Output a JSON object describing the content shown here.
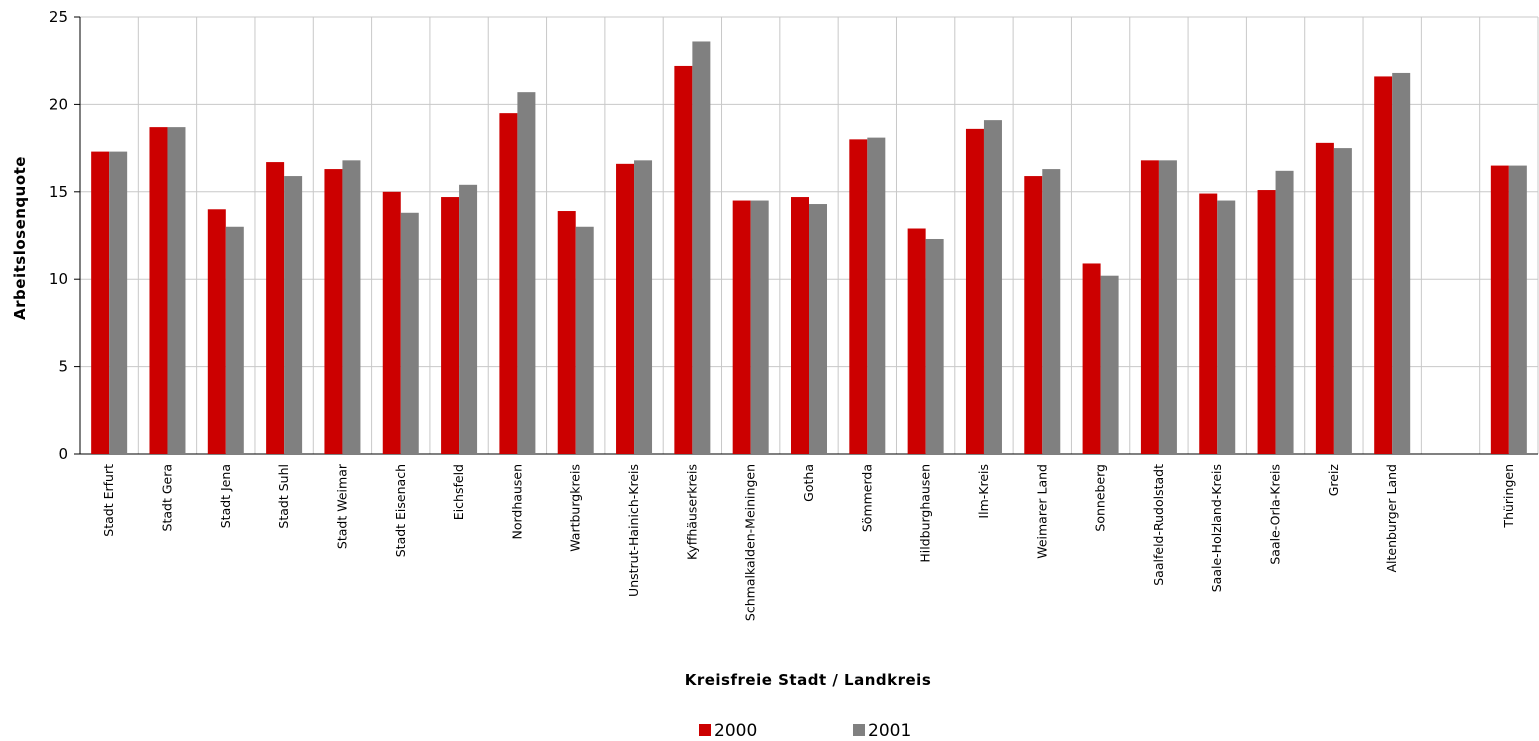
{
  "chart_data": {
    "type": "bar",
    "xlabel": "Kreisfreie Stadt / Landkreis",
    "ylabel": "Arbeitslosenquote",
    "ylim": [
      0,
      25
    ],
    "yticks": [
      0,
      5,
      10,
      15,
      20,
      25
    ],
    "grid": true,
    "legend_position": "bottom",
    "categories": [
      "Stadt Erfurt",
      "Stadt Gera",
      "Stadt Jena",
      "Stadt Suhl",
      "Stadt Weimar",
      "Stadt Eisenach",
      "Eichsfeld",
      "Nordhausen",
      "Wartburgkreis",
      "Unstrut-Hainich-Kreis",
      "Kyffhäuserkreis",
      "Schmalkalden-Meiningen",
      "Gotha",
      "Sömmerda",
      "Hildburghausen",
      "Ilm-Kreis",
      "Weimarer Land",
      "Sonneberg",
      "Saalfeld-Rudolstadt",
      "Saale-Holzland-Kreis",
      "Saale-Orla-Kreis",
      "Greiz",
      "Altenburger Land",
      "",
      "Thüringen"
    ],
    "series": [
      {
        "name": "2000",
        "color": "#cc0000",
        "values": [
          17.3,
          18.7,
          14.0,
          16.7,
          16.3,
          15.0,
          14.7,
          19.5,
          13.9,
          16.6,
          22.2,
          14.5,
          14.7,
          18.0,
          12.9,
          18.6,
          15.9,
          10.9,
          16.8,
          14.9,
          15.1,
          17.8,
          21.6,
          null,
          16.5
        ]
      },
      {
        "name": "2001",
        "color": "#808080",
        "values": [
          17.3,
          18.7,
          13.0,
          15.9,
          16.8,
          13.8,
          15.4,
          20.7,
          13.0,
          16.8,
          23.6,
          14.5,
          14.3,
          18.1,
          12.3,
          19.1,
          16.3,
          10.2,
          16.8,
          14.5,
          16.2,
          17.5,
          21.8,
          null,
          16.5
        ]
      }
    ]
  }
}
